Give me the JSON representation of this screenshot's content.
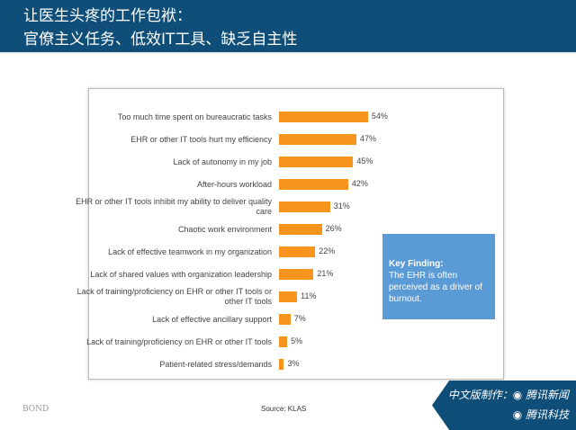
{
  "header": {
    "line1": "让医生头疼的工作包袱：",
    "line2": "官僚主义任务、低效IT工具、缺乏自主性"
  },
  "chart_data": {
    "type": "bar",
    "orientation": "horizontal",
    "color": "#f7941d",
    "categories": [
      "Too much time spent on bureaucratic tasks",
      "EHR or other IT tools hurt my efficiency",
      "Lack of autonomy in my job",
      "After-hours workload",
      "EHR or other IT tools inhibit my ability to deliver quality care",
      "Chaotic work environment",
      "Lack of effective teamwork in my organization",
      "Lack of shared values with organization leadership",
      "Lack of training/proficiency on EHR or other IT tools or other IT tools",
      "Lack of effective ancillary support",
      "Lack of training/proficiency on EHR or other IT tools",
      "Patient-related stress/demands"
    ],
    "values": [
      54,
      47,
      45,
      42,
      31,
      26,
      22,
      21,
      11,
      7,
      5,
      3
    ],
    "labels": [
      "54%",
      "47%",
      "45%",
      "42%",
      "31%",
      "26%",
      "22%",
      "21%",
      "11%",
      "7%",
      "5%",
      "3%"
    ]
  },
  "key_finding": {
    "title": "Key Finding:",
    "text": "The EHR is often perceived as a driver of burnout.",
    "color": "#5b9bd5"
  },
  "footer": {
    "bond": "BOND",
    "source": "Source: KLAS",
    "credit1": "中文版制作：◉ 腾讯新闻",
    "credit2": "◉ 腾讯科技"
  }
}
